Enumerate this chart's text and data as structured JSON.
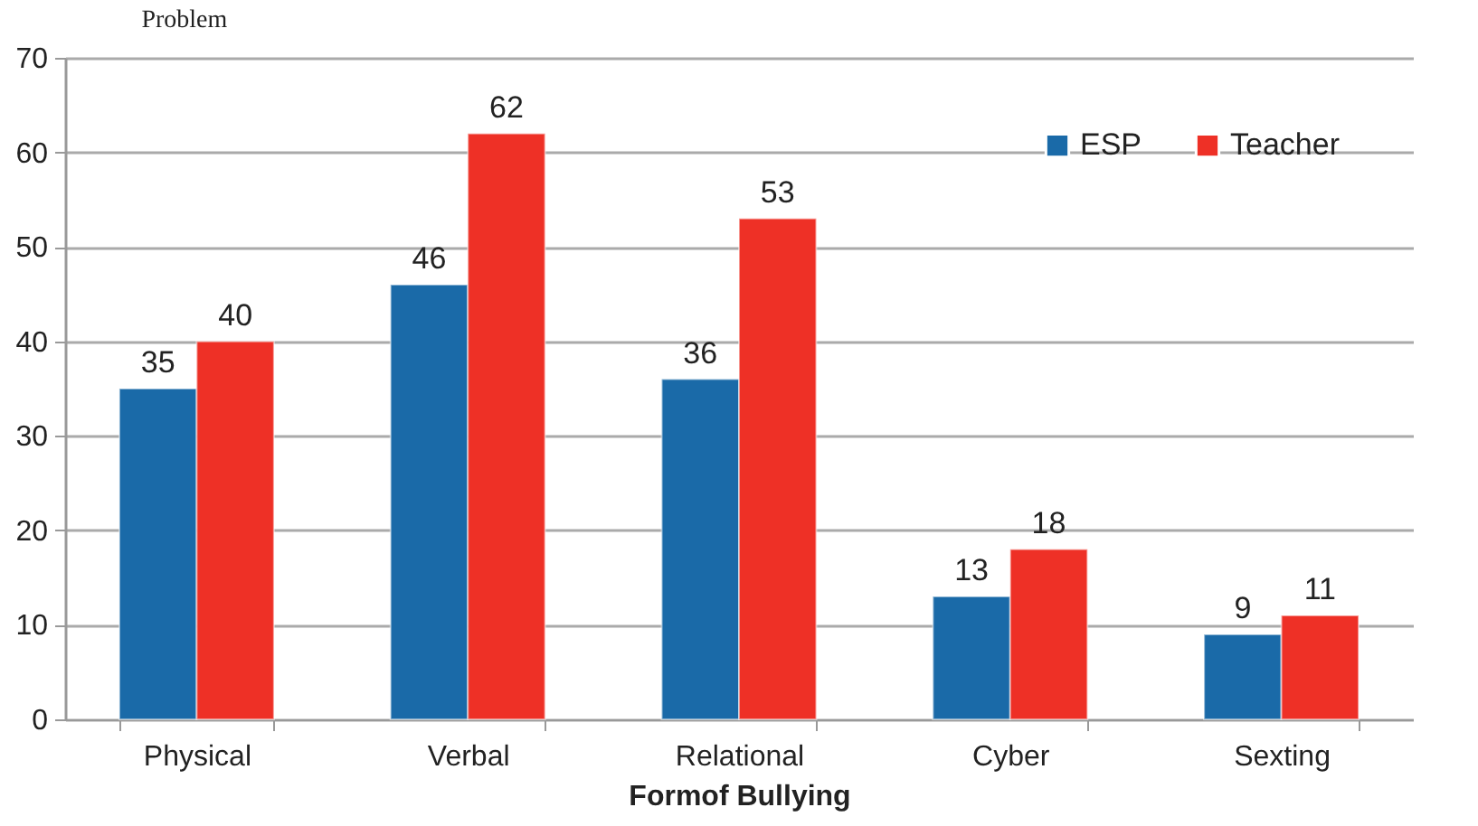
{
  "chart_data": {
    "type": "bar",
    "title": "Problem",
    "xlabel": "Formof Bullying",
    "categories": [
      "Physical",
      "Verbal",
      "Relational",
      "Cyber",
      "Sexting"
    ],
    "series": [
      {
        "name": "ESP",
        "color": "#1a6aa8",
        "values": [
          35,
          46,
          36,
          13,
          9
        ]
      },
      {
        "name": "Teacher",
        "color": "#ee3026",
        "values": [
          40,
          62,
          53,
          18,
          11
        ]
      }
    ],
    "ylim": [
      0,
      70
    ],
    "yticks": [
      0,
      10,
      20,
      30,
      40,
      50,
      60,
      70
    ],
    "grid": "y",
    "legend": "top right",
    "data_labels": true
  }
}
